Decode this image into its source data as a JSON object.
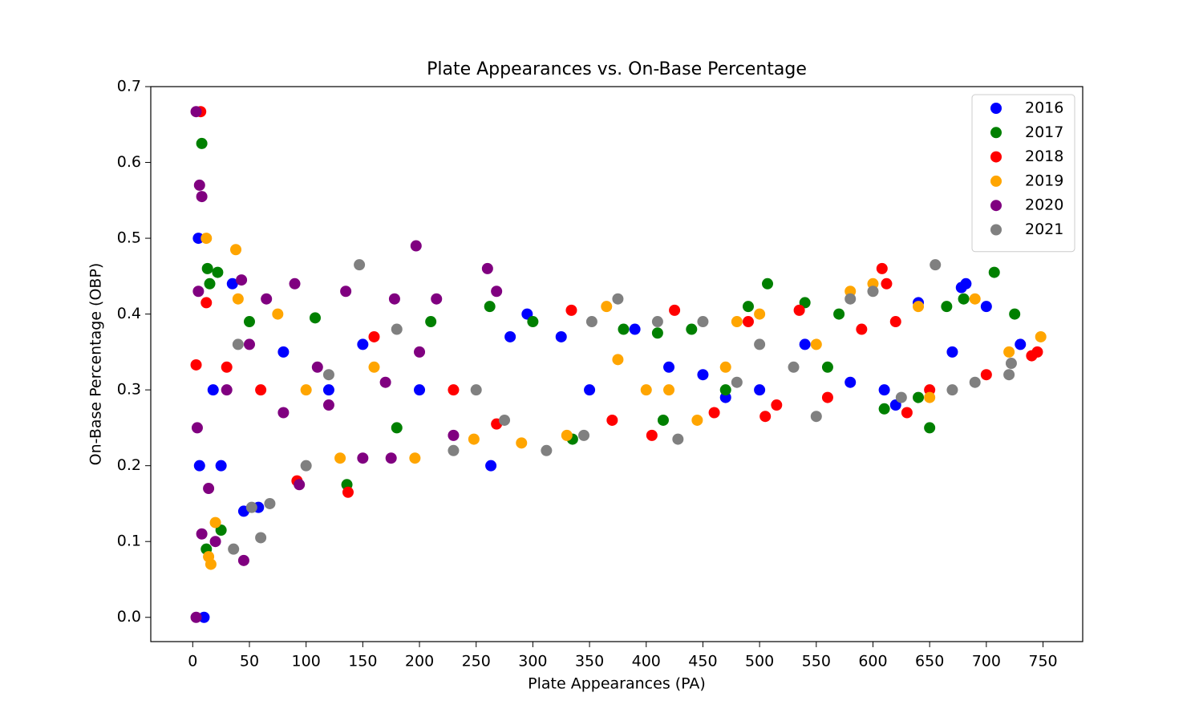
{
  "chart_data": {
    "type": "scatter",
    "title": "Plate Appearances vs. On-Base Percentage",
    "x_label": "Plate Appearances (PA)",
    "y_label": "On-Base Percentage (OBP)",
    "xlim": [
      -37,
      785
    ],
    "ylim": [
      -0.032,
      0.7
    ],
    "xticks": [
      0,
      50,
      100,
      150,
      200,
      250,
      300,
      350,
      400,
      450,
      500,
      550,
      600,
      650,
      700,
      750
    ],
    "yticks": [
      {
        "value": 0,
        "label": "0.0"
      },
      0.1,
      0.2,
      0.3,
      0.4,
      0.5,
      0.6,
      0.7
    ],
    "legend": "upper right",
    "grid": false,
    "series": [
      {
        "name": "2016",
        "color": "#0000ff",
        "x": [
          5,
          6,
          10,
          18,
          25,
          35,
          45,
          58,
          80,
          120,
          150,
          200,
          263,
          280,
          295,
          325,
          350,
          390,
          420,
          470,
          500,
          540,
          580,
          610,
          640,
          670,
          678,
          682,
          700,
          730,
          620,
          450
        ],
        "values": [
          0.5,
          0.2,
          0,
          0.3,
          0.2,
          0.44,
          0.14,
          0.145,
          0.35,
          0.3,
          0.36,
          0.3,
          0.2,
          0.37,
          0.4,
          0.37,
          0.3,
          0.38,
          0.33,
          0.29,
          0.3,
          0.36,
          0.31,
          0.3,
          0.415,
          0.35,
          0.435,
          0.44,
          0.41,
          0.36,
          0.28,
          0.32
        ]
      },
      {
        "name": "2017",
        "color": "#008000",
        "x": [
          8,
          13,
          15,
          12,
          25,
          22,
          50,
          108,
          136,
          180,
          210,
          262,
          300,
          335,
          380,
          410,
          415,
          440,
          490,
          507,
          540,
          570,
          610,
          640,
          650,
          665,
          680,
          707,
          725,
          560,
          470
        ],
        "values": [
          0.625,
          0.46,
          0.44,
          0.09,
          0.115,
          0.455,
          0.39,
          0.395,
          0.175,
          0.25,
          0.39,
          0.41,
          0.39,
          0.235,
          0.38,
          0.375,
          0.26,
          0.38,
          0.41,
          0.44,
          0.415,
          0.4,
          0.275,
          0.29,
          0.25,
          0.41,
          0.42,
          0.455,
          0.4,
          0.33,
          0.3
        ]
      },
      {
        "name": "2018",
        "color": "#ff0000",
        "x": [
          3,
          7,
          12,
          30,
          60,
          92,
          137,
          160,
          230,
          268,
          334,
          370,
          405,
          425,
          460,
          490,
          505,
          535,
          560,
          608,
          612,
          620,
          630,
          650,
          700,
          740,
          745,
          590,
          515
        ],
        "values": [
          0.333,
          0.667,
          0.415,
          0.33,
          0.3,
          0.18,
          0.165,
          0.37,
          0.3,
          0.255,
          0.405,
          0.26,
          0.24,
          0.405,
          0.27,
          0.39,
          0.265,
          0.405,
          0.29,
          0.46,
          0.44,
          0.39,
          0.27,
          0.3,
          0.32,
          0.345,
          0.35,
          0.38,
          0.28
        ]
      },
      {
        "name": "2019",
        "color": "#ffa500",
        "x": [
          12,
          14,
          16,
          20,
          38,
          40,
          75,
          100,
          130,
          160,
          196,
          248,
          290,
          330,
          365,
          375,
          400,
          445,
          480,
          500,
          550,
          580,
          600,
          640,
          650,
          690,
          720,
          748,
          470,
          420
        ],
        "values": [
          0.5,
          0.08,
          0.07,
          0.125,
          0.485,
          0.42,
          0.4,
          0.3,
          0.21,
          0.33,
          0.21,
          0.235,
          0.23,
          0.24,
          0.41,
          0.34,
          0.3,
          0.26,
          0.39,
          0.4,
          0.36,
          0.43,
          0.44,
          0.41,
          0.29,
          0.42,
          0.35,
          0.37,
          0.33,
          0.3
        ]
      },
      {
        "name": "2020",
        "color": "#800080",
        "x": [
          3,
          6,
          8,
          5,
          4,
          3,
          8,
          14,
          20,
          45,
          43,
          50,
          65,
          90,
          94,
          110,
          135,
          150,
          175,
          178,
          197,
          215,
          230,
          260,
          268,
          120,
          170,
          200,
          30,
          80
        ],
        "values": [
          0.667,
          0.57,
          0.555,
          0.43,
          0.25,
          0,
          0.11,
          0.17,
          0.1,
          0.075,
          0.445,
          0.36,
          0.42,
          0.44,
          0.175,
          0.33,
          0.43,
          0.21,
          0.21,
          0.42,
          0.49,
          0.42,
          0.24,
          0.46,
          0.43,
          0.28,
          0.31,
          0.35,
          0.3,
          0.27
        ]
      },
      {
        "name": "2021",
        "color": "#808080",
        "x": [
          36,
          60,
          68,
          52,
          40,
          100,
          147,
          180,
          230,
          275,
          312,
          345,
          352,
          375,
          428,
          410,
          450,
          500,
          550,
          580,
          600,
          625,
          655,
          670,
          690,
          720,
          722,
          530,
          480,
          250,
          120
        ],
        "values": [
          0.09,
          0.105,
          0.15,
          0.145,
          0.36,
          0.2,
          0.465,
          0.38,
          0.22,
          0.26,
          0.22,
          0.24,
          0.39,
          0.42,
          0.235,
          0.39,
          0.39,
          0.36,
          0.265,
          0.42,
          0.43,
          0.29,
          0.465,
          0.3,
          0.31,
          0.32,
          0.335,
          0.33,
          0.31,
          0.3,
          0.32
        ]
      }
    ]
  }
}
